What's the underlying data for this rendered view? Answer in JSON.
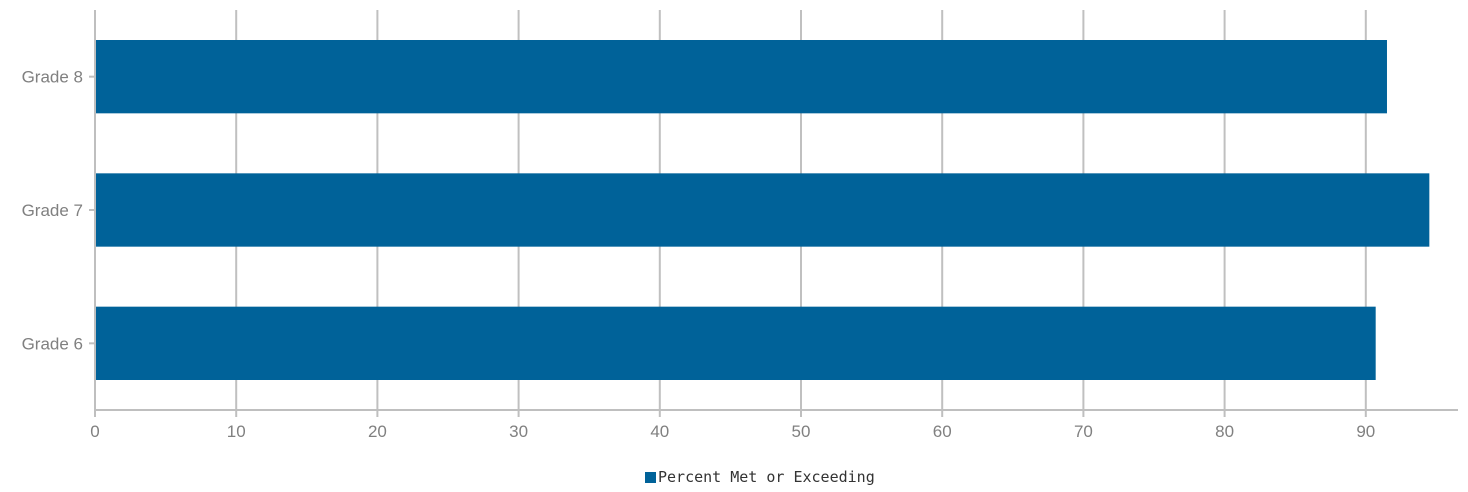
{
  "chart_data": {
    "type": "bar",
    "orientation": "horizontal",
    "categories": [
      "Grade 8",
      "Grade 7",
      "Grade 6"
    ],
    "series": [
      {
        "name": "Percent Met or Exceeding",
        "values": [
          91.5,
          94.5,
          90.7
        ],
        "color": "#006299"
      }
    ],
    "xlim": [
      0,
      96
    ],
    "xticks": [
      0,
      10,
      20,
      30,
      40,
      50,
      60,
      70,
      80,
      90
    ],
    "grid": "vertical",
    "legend_position": "bottom",
    "title": "",
    "xlabel": "",
    "ylabel": ""
  },
  "colors": {
    "bar": "#006299",
    "grid": "#c0c0c0",
    "axis": "#bfbfbf",
    "tick_text": "#808080"
  }
}
